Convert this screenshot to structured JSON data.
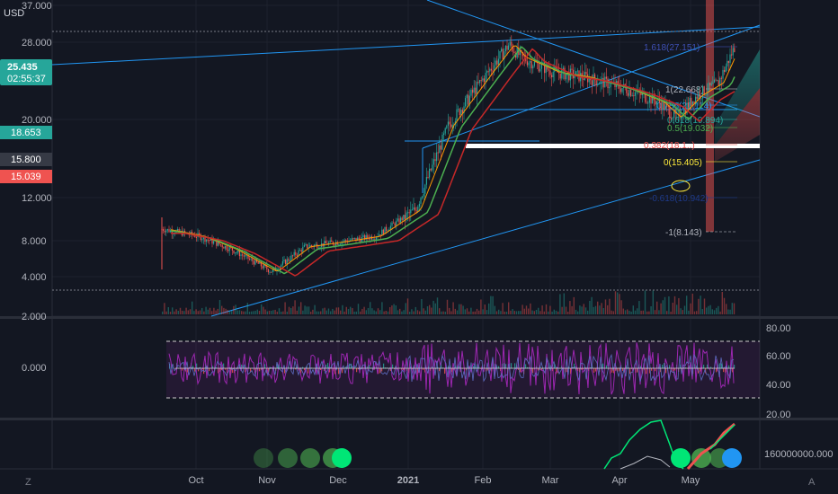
{
  "currency": "USD",
  "price_axis": {
    "ticks": [
      "37.000",
      "28.000",
      "20.000",
      "12.000",
      "8.000",
      "4.000",
      "2.000"
    ],
    "price_label": {
      "value": "25.435",
      "countdown": "02:55:37",
      "color": "#26a69a"
    },
    "markers": [
      {
        "value": "18.653",
        "color": "#26a69a"
      },
      {
        "value": "15.800",
        "color": "#363a45"
      },
      {
        "value": "15.039",
        "color": "#ef5350"
      }
    ]
  },
  "time_axis": [
    "Oct",
    "Nov",
    "Dec",
    "2021",
    "Feb",
    "Mar",
    "Apr",
    "May"
  ],
  "rsi_axis": {
    "left_label": "0.000",
    "right_ticks": [
      "80.00",
      "60.00",
      "40.00",
      "20.00"
    ]
  },
  "bottom_axis": {
    "right_tick": "160000000.000"
  },
  "fib_labels": [
    "1.618(27.151)",
    "1(22.668)",
    "0.786(21.114)",
    "0.618(19.894)",
    "0.5(19.032)",
    "0.382(18.1..)",
    "0(15.405)",
    "-0.618(10.942)",
    "-1(8.143)"
  ],
  "footer": {
    "left_button": "Z",
    "right_button": "A"
  },
  "colors": {
    "background": "#131722",
    "up": "#26a69a",
    "down": "#ef5350",
    "trendline": "#2196f3",
    "rsi": "#9c27b0",
    "ema_orange": "#ff9800",
    "ema_green": "#4caf50",
    "ema_red": "#c62828"
  },
  "chart_data": {
    "type": "candlestick",
    "scale": "log",
    "ylim": [
      2,
      37
    ],
    "x": [
      "2020-09-15",
      "2020-10-01",
      "2020-10-15",
      "2020-11-01",
      "2020-11-15",
      "2020-12-01",
      "2020-12-15",
      "2021-01-01",
      "2021-01-15",
      "2021-02-01",
      "2021-02-10",
      "2021-02-15",
      "2021-03-01",
      "2021-03-15",
      "2021-04-01",
      "2021-04-15",
      "2021-04-22",
      "2021-05-01",
      "2021-05-10",
      "2021-05-17"
    ],
    "close": [
      4.5,
      4.2,
      3.7,
      3.0,
      3.8,
      4.0,
      4.2,
      5.4,
      12.0,
      20.0,
      26.0,
      23.0,
      20.0,
      19.0,
      17.0,
      15.0,
      13.0,
      16.0,
      18.0,
      25.4
    ],
    "grid": true,
    "panes": [
      "price",
      "rsi",
      "volume-indicator"
    ]
  }
}
